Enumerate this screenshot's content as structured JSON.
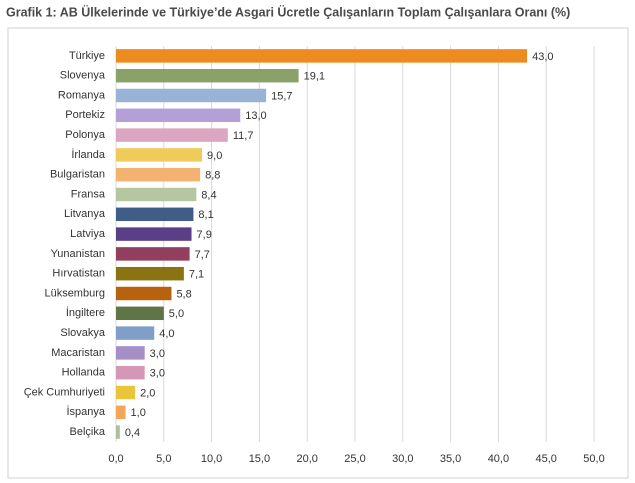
{
  "chart_data": {
    "type": "hbar",
    "title": "Grafik 1: AB Ülkelerinde ve Türkiye’de Asgari Ücretle Çalışanların Toplam Çalışanlara Oranı (%)",
    "categories": [
      "Türkiye",
      "Slovenya",
      "Romanya",
      "Portekiz",
      "Polonya",
      "İrlanda",
      "Bulgaristan",
      "Fransa",
      "Litvanya",
      "Latviya",
      "Yunanistan",
      "Hırvatistan",
      "Lüksemburg",
      "İngiltere",
      "Slovakya",
      "Macaristan",
      "Hollanda",
      "Çek Cumhuriyeti",
      "İspanya",
      "Belçika"
    ],
    "values": [
      43.0,
      19.1,
      15.7,
      13.0,
      11.7,
      9.0,
      8.8,
      8.4,
      8.1,
      7.9,
      7.7,
      7.1,
      5.8,
      5.0,
      4.0,
      3.0,
      3.0,
      2.0,
      1.0,
      0.4
    ],
    "value_labels": [
      "43,0",
      "19,1",
      "15,7",
      "13,0",
      "11,7",
      "9,0",
      "8,8",
      "8,4",
      "8,1",
      "7,9",
      "7,7",
      "7,1",
      "5,8",
      "5,0",
      "4,0",
      "3,0",
      "3,0",
      "2,0",
      "1,0",
      "0,4"
    ],
    "colors": [
      "#ed8b1e",
      "#8aa16a",
      "#98b3d6",
      "#b3a0d6",
      "#dba7c0",
      "#efcb5a",
      "#f3b270",
      "#b5c6a0",
      "#3f5d87",
      "#5a3f87",
      "#913e5f",
      "#8a7412",
      "#b8620f",
      "#5f7546",
      "#7f9fc8",
      "#a68ec7",
      "#d497b5",
      "#e9c53a",
      "#f2a65a",
      "#b0bda0"
    ],
    "xlim": [
      0,
      50
    ],
    "xticks": [
      {
        "value": 0,
        "label": "0,0"
      },
      {
        "value": 5,
        "label": "5,0"
      },
      {
        "value": 10,
        "label": "10,0"
      },
      {
        "value": 15,
        "label": "15,0"
      },
      {
        "value": 20,
        "label": "20,0"
      },
      {
        "value": 25,
        "label": "25,0"
      },
      {
        "value": 30,
        "label": "30,0"
      },
      {
        "value": 35,
        "label": "35,0"
      },
      {
        "value": 40,
        "label": "40,0"
      },
      {
        "value": 45,
        "label": "45,0"
      },
      {
        "value": 50,
        "label": "50,0"
      }
    ],
    "grid": true
  }
}
